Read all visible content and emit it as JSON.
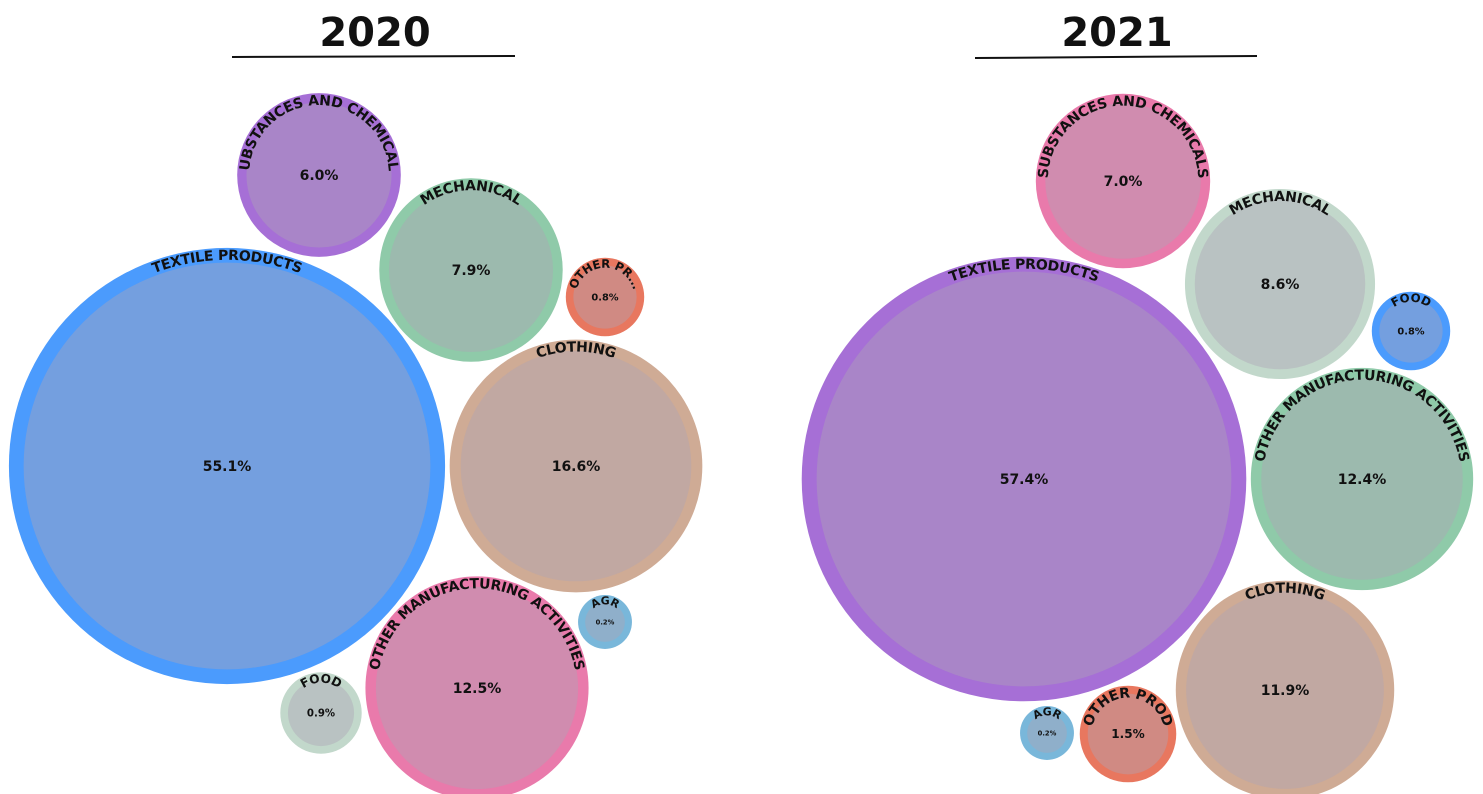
{
  "chart_data": [
    {
      "type": "bubble",
      "title": "2020",
      "categories": [
        "TEXTILE PRODUCTS",
        "SUBSTANCES AND CHEMICALS",
        "MECHANICAL",
        "OTHER PR...",
        "CLOTHING",
        "OTHER MANUFACTURING ACTIVITIES",
        "AGR",
        "FOOD"
      ],
      "values": [
        55.1,
        6.0,
        7.9,
        0.8,
        16.6,
        12.5,
        0.2,
        0.9
      ],
      "value_labels": [
        "55.1%",
        "6.0%",
        "7.9%",
        "0.8%",
        "16.6%",
        "12.5%",
        "0.2%",
        "0.9%"
      ],
      "colors": [
        "#4b9bfd",
        "#a66fd6",
        "#8fcaa9",
        "#e8775f",
        "#cfab95",
        "#e97aab",
        "#79b7da",
        "#c2d8cb"
      ]
    },
    {
      "type": "bubble",
      "title": "2021",
      "categories": [
        "TEXTILE PRODUCTS",
        "SUBSTANCES AND CHEMICALS",
        "MECHANICAL",
        "FOOD",
        "OTHER MANUFACTURING ACTIVITIES",
        "CLOTHING",
        "OTHER PROD",
        "AGR"
      ],
      "values": [
        57.4,
        7.0,
        8.6,
        0.8,
        12.4,
        11.9,
        1.5,
        0.2
      ],
      "value_labels": [
        "57.4%",
        "7.0%",
        "8.6%",
        "0.8%",
        "12.4%",
        "11.9%",
        "1.5%",
        "0.2%"
      ],
      "colors": [
        "#a66fd6",
        "#e97aab",
        "#c2d8cb",
        "#4b9bfd",
        "#8fcaa9",
        "#cfab95",
        "#e8775f",
        "#79b7da"
      ]
    }
  ]
}
